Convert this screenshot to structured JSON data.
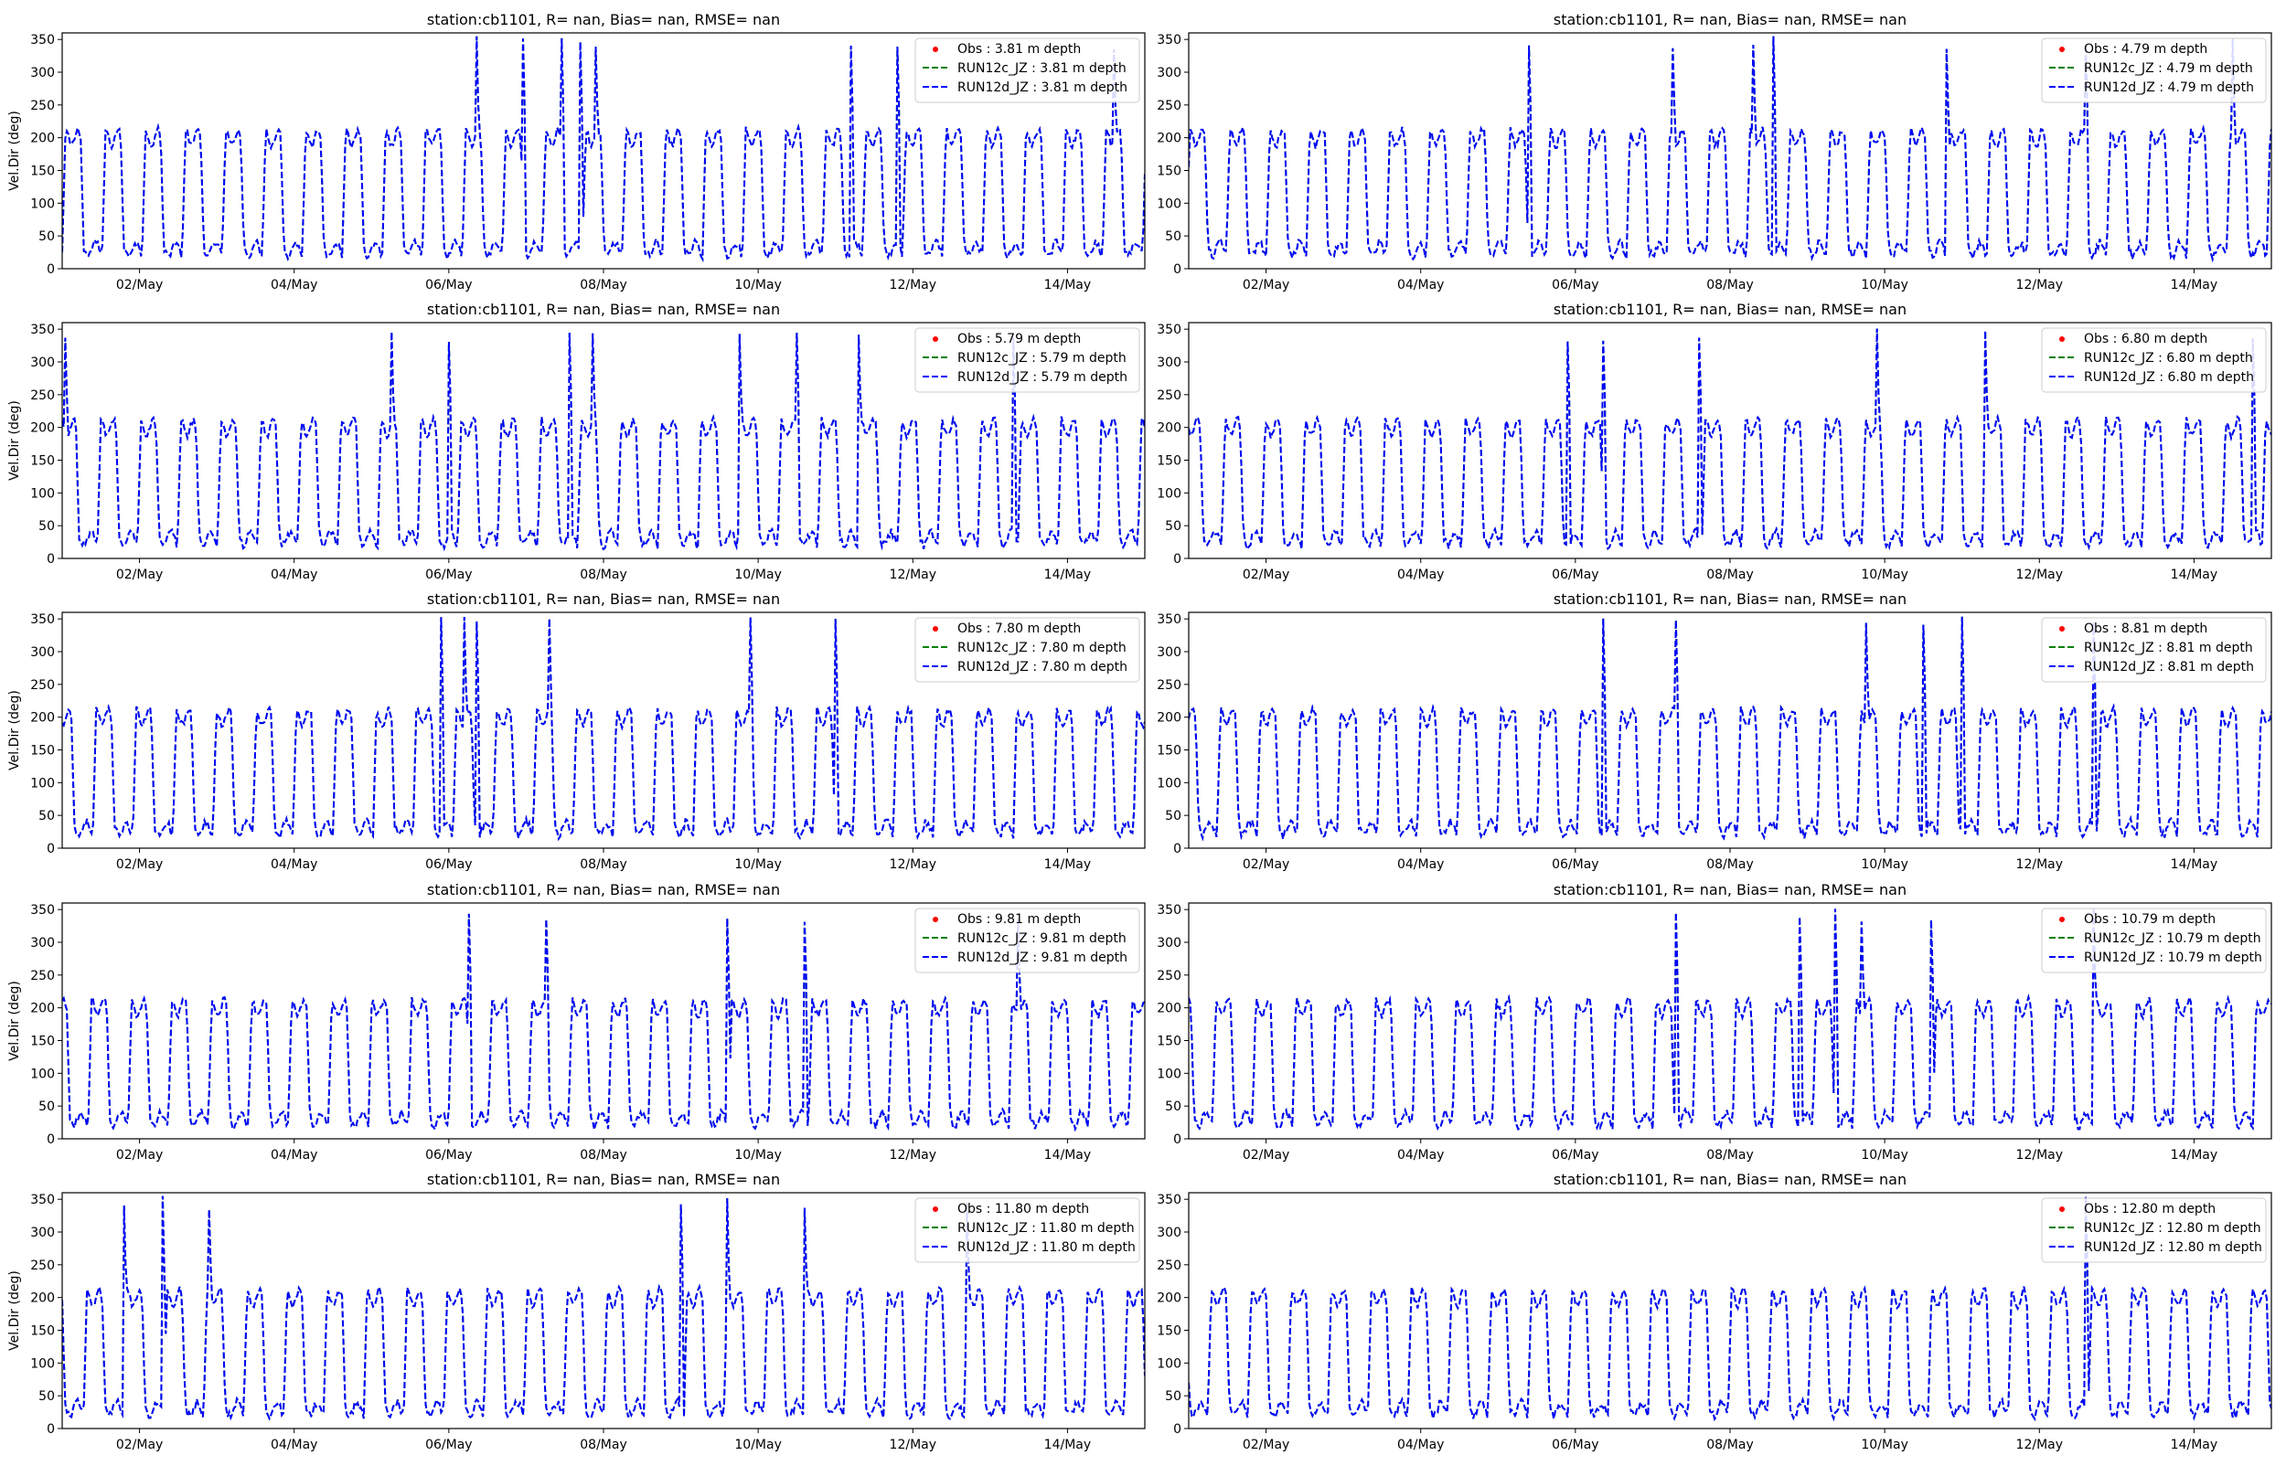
{
  "figure": {
    "subplot_title": "station:cb1101, R=   nan, Bias=    nan, RMSE=    nan",
    "ylabel": "Vel.Dir (deg)",
    "legend_obs": "Obs",
    "legend_run_c": "RUN12c_JZ",
    "legend_run_d": "RUN12d_JZ",
    "legend_suffix": "m depth",
    "colors": {
      "obs": "#ff0000",
      "run_c": "#008000",
      "run_d": "#0000ff"
    }
  },
  "chart_data": [
    {
      "type": "line",
      "depth": "3.81",
      "title": "station:cb1101, R=   nan, Bias=    nan, RMSE=    nan",
      "xlabel": "",
      "ylabel": "Vel.Dir (deg)",
      "xticks": [
        "02/May",
        "04/May",
        "06/May",
        "08/May",
        "10/May",
        "12/May",
        "14/May"
      ],
      "yticks": [
        0,
        50,
        100,
        150,
        200,
        250,
        300,
        350
      ],
      "ylim": [
        0,
        360
      ],
      "xlim_days": [
        1.0,
        15.0
      ],
      "legend_position": "top-right",
      "series": [
        {
          "name": "Obs : 3.81 m depth",
          "style": "points",
          "values": []
        },
        {
          "name": "RUN12c_JZ : 3.81 m depth",
          "style": "dashed"
        },
        {
          "name": "RUN12d_JZ : 3.81 m depth",
          "style": "dashed"
        }
      ],
      "spikes": [
        6.35,
        6.95,
        7.45,
        7.7,
        7.9,
        11.2,
        11.8,
        14.6
      ]
    },
    {
      "type": "line",
      "depth": "4.79",
      "title": "station:cb1101, R=   nan, Bias=   nan, RMSE=    nan",
      "xlabel": "",
      "ylabel": "",
      "xticks": [
        "02/May",
        "04/May",
        "06/May",
        "08/May",
        "10/May",
        "12/May",
        "14/May"
      ],
      "yticks": [
        0,
        50,
        100,
        150,
        200,
        250,
        300,
        350
      ],
      "ylim": [
        0,
        360
      ],
      "xlim_days": [
        1.0,
        15.0
      ],
      "legend_position": "top-right",
      "series": [
        {
          "name": "Obs : 4.79 m depth",
          "style": "points",
          "values": []
        },
        {
          "name": "RUN12c_JZ : 4.79 m depth",
          "style": "dashed"
        },
        {
          "name": "RUN12d_JZ : 4.79 m depth",
          "style": "dashed"
        }
      ],
      "spikes": [
        5.4,
        7.25,
        8.3,
        8.55,
        10.8,
        12.6,
        14.5
      ]
    },
    {
      "type": "line",
      "depth": "5.79",
      "title": "station:cb1101, R=   nan, Bias=    nan, RMSE=    nan",
      "xlabel": "",
      "ylabel": "Vel.Dir (deg)",
      "xticks": [
        "02/May",
        "04/May",
        "06/May",
        "08/May",
        "10/May",
        "12/May",
        "14/May"
      ],
      "yticks": [
        0,
        50,
        100,
        150,
        200,
        250,
        300,
        350
      ],
      "ylim": [
        0,
        360
      ],
      "xlim_days": [
        1.0,
        15.0
      ],
      "legend_position": "top-right",
      "series": [
        {
          "name": "Obs : 5.79 m depth",
          "style": "points",
          "values": []
        },
        {
          "name": "RUN12c_JZ : 5.79 m depth",
          "style": "dashed"
        },
        {
          "name": "RUN12d_JZ : 5.79 m depth",
          "style": "dashed"
        }
      ],
      "spikes": [
        1.05,
        5.25,
        6.0,
        7.55,
        7.85,
        9.75,
        10.5,
        11.3,
        13.3
      ]
    },
    {
      "type": "line",
      "depth": "6.80",
      "title": "station:cb1101, R=   nan, Bias=    nan, RMSE=    nan",
      "xlabel": "",
      "ylabel": "",
      "xticks": [
        "02/May",
        "04/May",
        "06/May",
        "08/May",
        "10/May",
        "12/May",
        "14/May"
      ],
      "yticks": [
        0,
        50,
        100,
        150,
        200,
        250,
        300,
        350
      ],
      "ylim": [
        0,
        360
      ],
      "xlim_days": [
        1.0,
        15.0
      ],
      "legend_position": "top-right",
      "series": [
        {
          "name": "Obs : 6.80 m depth",
          "style": "points",
          "values": []
        },
        {
          "name": "RUN12c_JZ : 6.80 m depth",
          "style": "dashed"
        },
        {
          "name": "RUN12d_JZ : 6.80 m depth",
          "style": "dashed"
        }
      ],
      "spikes": [
        5.9,
        6.35,
        7.6,
        9.9,
        11.3,
        14.75
      ]
    },
    {
      "type": "line",
      "depth": "7.80",
      "title": "station:cb1101, R=   nan, Bias=    nan, RMSE=    nan",
      "xlabel": "",
      "ylabel": "Vel.Dir (deg)",
      "xticks": [
        "02/May",
        "04/May",
        "06/May",
        "08/May",
        "10/May",
        "12/May",
        "14/May"
      ],
      "yticks": [
        0,
        50,
        100,
        150,
        200,
        250,
        300,
        350
      ],
      "ylim": [
        0,
        360
      ],
      "xlim_days": [
        1.0,
        15.0
      ],
      "legend_position": "top-right",
      "series": [
        {
          "name": "Obs : 7.80 m depth",
          "style": "points",
          "values": []
        },
        {
          "name": "RUN12c_JZ : 7.80 m depth",
          "style": "dashed"
        },
        {
          "name": "RUN12d_JZ : 7.80 m depth",
          "style": "dashed"
        }
      ],
      "spikes": [
        5.9,
        6.2,
        6.35,
        7.3,
        9.9,
        11.0
      ]
    },
    {
      "type": "line",
      "depth": "8.81",
      "title": "station:cb1101, R=   nan, Bias=    nan, RMSE=    nan",
      "xlabel": "",
      "ylabel": "",
      "xticks": [
        "02/May",
        "04/May",
        "06/May",
        "08/May",
        "10/May",
        "12/May",
        "14/May"
      ],
      "yticks": [
        0,
        50,
        100,
        150,
        200,
        250,
        300,
        350
      ],
      "ylim": [
        0,
        360
      ],
      "xlim_days": [
        1.0,
        15.0
      ],
      "legend_position": "top-right",
      "series": [
        {
          "name": "Obs : 8.81 m depth",
          "style": "points",
          "values": []
        },
        {
          "name": "RUN12c_JZ : 8.81 m depth",
          "style": "dashed"
        },
        {
          "name": "RUN12d_JZ : 8.81 m depth",
          "style": "dashed"
        }
      ],
      "spikes": [
        6.35,
        7.3,
        9.75,
        10.5,
        11.0,
        12.7
      ]
    },
    {
      "type": "line",
      "depth": "9.81",
      "title": "station:cb1101, R=   nan, Bias=    nan, RMSE=    nan",
      "xlabel": "",
      "ylabel": "Vel.Dir (deg)",
      "xticks": [
        "02/May",
        "04/May",
        "06/May",
        "08/May",
        "10/May",
        "12/May",
        "14/May"
      ],
      "yticks": [
        0,
        50,
        100,
        150,
        200,
        250,
        300,
        350
      ],
      "ylim": [
        0,
        360
      ],
      "xlim_days": [
        1.0,
        15.0
      ],
      "legend_position": "top-right",
      "series": [
        {
          "name": "Obs : 9.81 m depth",
          "style": "points",
          "values": []
        },
        {
          "name": "RUN12c_JZ : 9.81 m depth",
          "style": "dashed"
        },
        {
          "name": "RUN12d_JZ : 9.81 m depth",
          "style": "dashed"
        }
      ],
      "spikes": [
        6.25,
        7.25,
        9.6,
        10.6,
        13.35
      ]
    },
    {
      "type": "line",
      "depth": "10.79",
      "title": "station:cb1101, R=   nan, Bias=   nan, RMSE=    nan",
      "xlabel": "",
      "ylabel": "",
      "xticks": [
        "02/May",
        "04/May",
        "06/May",
        "08/May",
        "10/May",
        "12/May",
        "14/May"
      ],
      "yticks": [
        0,
        50,
        100,
        150,
        200,
        250,
        300,
        350
      ],
      "ylim": [
        0,
        360
      ],
      "xlim_days": [
        1.0,
        15.0
      ],
      "legend_position": "top-right",
      "series": [
        {
          "name": "Obs : 10.79 m depth",
          "style": "points",
          "values": []
        },
        {
          "name": "RUN12c_JZ : 10.79 m depth",
          "style": "dashed"
        },
        {
          "name": "RUN12d_JZ : 10.79 m depth",
          "style": "dashed"
        }
      ],
      "spikes": [
        7.3,
        8.9,
        9.35,
        9.7,
        10.6,
        12.7
      ]
    },
    {
      "type": "line",
      "depth": "11.80",
      "title": "station:cb1101, R=   nan, Bias=    nan, RMSE=    nan",
      "xlabel": "",
      "ylabel": "Vel.Dir (deg)",
      "xticks": [
        "02/May",
        "04/May",
        "06/May",
        "08/May",
        "10/May",
        "12/May",
        "14/May"
      ],
      "yticks": [
        0,
        50,
        100,
        150,
        200,
        250,
        300,
        350
      ],
      "ylim": [
        0,
        360
      ],
      "xlim_days": [
        1.0,
        15.0
      ],
      "legend_position": "top-right",
      "series": [
        {
          "name": "Obs : 11.80 m depth",
          "style": "points",
          "values": []
        },
        {
          "name": "RUN12c_JZ : 11.80 m depth",
          "style": "dashed"
        },
        {
          "name": "RUN12d_JZ : 11.80 m depth",
          "style": "dashed"
        }
      ],
      "spikes": [
        1.8,
        2.3,
        2.9,
        9.0,
        9.6,
        10.6,
        12.7
      ]
    },
    {
      "type": "line",
      "depth": "12.80",
      "title": "station:cb1101, R=   nan, Bias=   nan, RMSE=    nan",
      "xlabel": "",
      "ylabel": "",
      "xticks": [
        "02/May",
        "04/May",
        "06/May",
        "08/May",
        "10/May",
        "12/May",
        "14/May"
      ],
      "yticks": [
        0,
        50,
        100,
        150,
        200,
        250,
        300,
        350
      ],
      "ylim": [
        0,
        360
      ],
      "xlim_days": [
        1.0,
        15.0
      ],
      "legend_position": "top-right",
      "series": [
        {
          "name": "Obs : 12.80 m depth",
          "style": "points",
          "values": []
        },
        {
          "name": "RUN12c_JZ : 12.80 m depth",
          "style": "dashed"
        },
        {
          "name": "RUN12d_JZ : 12.80 m depth",
          "style": "dashed"
        }
      ],
      "spikes": [
        12.6
      ]
    }
  ]
}
